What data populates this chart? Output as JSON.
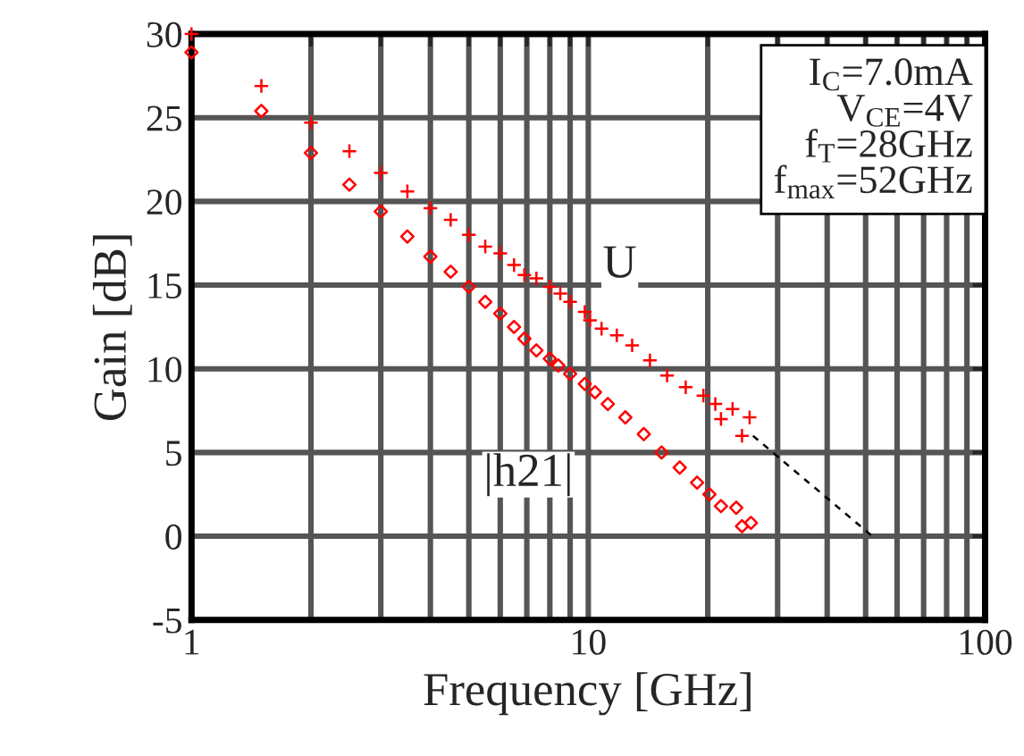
{
  "chart_data": {
    "type": "scatter",
    "xlabel": "Frequency [GHz]",
    "ylabel": "Gain [dB]",
    "log": "x",
    "grid": true,
    "legend": false,
    "xlim": [
      1,
      100
    ],
    "ylim": [
      -5,
      30
    ],
    "xticks": [
      1,
      {
        "value": 2,
        "label": null
      },
      {
        "value": 3,
        "label": null
      },
      {
        "value": 4,
        "label": null
      },
      {
        "value": 5,
        "label": null
      },
      {
        "value": 6,
        "label": null
      },
      {
        "value": 7,
        "label": null
      },
      {
        "value": 8,
        "label": null
      },
      {
        "value": 9,
        "label": null
      },
      10,
      {
        "value": 20,
        "label": null
      },
      {
        "value": 30,
        "label": null
      },
      {
        "value": 40,
        "label": null
      },
      {
        "value": 50,
        "label": null
      },
      {
        "value": 60,
        "label": null
      },
      {
        "value": 70,
        "label": null
      },
      {
        "value": 80,
        "label": null
      },
      {
        "value": 90,
        "label": null
      },
      100
    ],
    "yticks": [
      -5,
      0,
      5,
      10,
      15,
      20,
      25,
      30
    ],
    "series": [
      {
        "name": "U",
        "marker": "cross",
        "color": "#ff0000",
        "x": [
          1,
          1.5,
          2.0,
          2.5,
          3.0,
          3.5,
          4.0,
          4.5,
          5.0,
          5.5,
          6.0,
          6.5,
          6.9,
          7.4,
          8.0,
          8.5,
          9.0,
          9.8,
          10.1,
          10.8,
          11.8,
          12.9,
          14.3,
          15.8,
          17.6,
          19.5,
          20.9,
          21.6,
          23.1,
          24.4,
          25.5
        ],
        "values": [
          30.0,
          26.9,
          24.7,
          23.0,
          21.7,
          20.6,
          19.6,
          18.9,
          18.0,
          17.3,
          16.9,
          16.2,
          15.6,
          15.4,
          14.9,
          14.5,
          14.0,
          13.4,
          12.9,
          12.4,
          12.0,
          11.4,
          10.5,
          9.6,
          8.9,
          8.4,
          7.9,
          7.0,
          7.6,
          6.0,
          7.1
        ]
      },
      {
        "name": "|h21|",
        "marker": "diamond",
        "color": "#ff0000",
        "x": [
          1,
          1.5,
          2.0,
          2.5,
          3.0,
          3.5,
          4.0,
          4.5,
          5.0,
          5.5,
          6.0,
          6.5,
          6.9,
          7.4,
          8.0,
          8.4,
          9.0,
          9.8,
          10.4,
          11.2,
          12.4,
          13.8,
          15.3,
          17.0,
          18.8,
          20.2,
          21.6,
          23.6,
          24.4,
          25.7
        ],
        "values": [
          28.9,
          25.4,
          22.9,
          21.0,
          19.4,
          17.9,
          16.7,
          15.8,
          14.9,
          14.0,
          13.3,
          12.5,
          11.8,
          11.1,
          10.6,
          10.2,
          9.7,
          9.1,
          8.6,
          7.9,
          7.1,
          6.1,
          5.0,
          4.1,
          3.2,
          2.5,
          1.8,
          1.7,
          0.6,
          0.8
        ]
      },
      {
        "type": "line",
        "marker": "none",
        "line_style": "dashed",
        "color": "#000000",
        "x": [
          26,
          52
        ],
        "values": [
          6.0,
          0.0
        ]
      }
    ],
    "annotations": [
      "I$_{C}$=7.0mA\nV$_{CE}$=4V\nf$_{T}$=28GHz\nf$_{max}$=52GHz"
    ]
  }
}
